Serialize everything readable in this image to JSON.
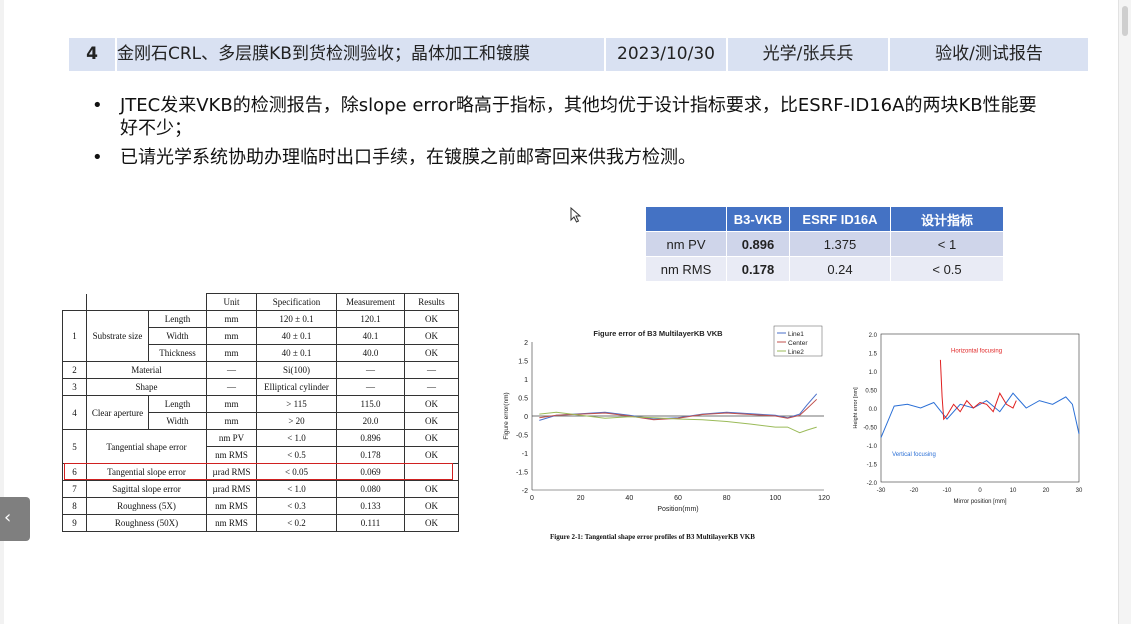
{
  "header": {
    "index": "4",
    "title": "金刚石CRL、多层膜KB到货检测验收；晶体加工和镀膜",
    "date": "2023/10/30",
    "owner": "光学/张兵兵",
    "type": "验收/测试报告"
  },
  "bullets": [
    "JTEC发来VKB的检测报告，除slope error略高于指标，其他均优于设计指标要求，比ESRF-ID16A的两块KB性能要好不少；",
    "已请光学系统协助办理临时出口手续，在镀膜之前邮寄回来供我方检测。"
  ],
  "bullet_glyph": "•",
  "comparison": {
    "headers": [
      "",
      "B3-VKB",
      "ESRF ID16A",
      "设计指标"
    ],
    "rows": [
      [
        "nm PV",
        "0.896",
        "1.375",
        "< 1"
      ],
      [
        "nm RMS",
        "0.178",
        "0.24",
        "< 0.5"
      ]
    ]
  },
  "spec_table": {
    "headers": [
      "Unit",
      "Specification",
      "Measurement",
      "Results"
    ],
    "rows": [
      {
        "no": "1",
        "item": "Substrate size",
        "sub": "Length",
        "unit": "mm",
        "spec": "120 ± 0.1",
        "meas": "120.1",
        "res": "OK"
      },
      {
        "no": "",
        "item": "",
        "sub": "Width",
        "unit": "mm",
        "spec": "40 ± 0.1",
        "meas": "40.1",
        "res": "OK"
      },
      {
        "no": "",
        "item": "",
        "sub": "Thickness",
        "unit": "mm",
        "spec": "40 ± 0.1",
        "meas": "40.0",
        "res": "OK"
      },
      {
        "no": "2",
        "item": "Material",
        "sub": "",
        "unit": "—",
        "spec": "Si(100)",
        "meas": "—",
        "res": "—"
      },
      {
        "no": "3",
        "item": "Shape",
        "sub": "",
        "unit": "—",
        "spec": "Elliptical cylinder",
        "meas": "—",
        "res": "—"
      },
      {
        "no": "4",
        "item": "Clear aperture",
        "sub": "Length",
        "unit": "mm",
        "spec": "> 115",
        "meas": "115.0",
        "res": "OK"
      },
      {
        "no": "",
        "item": "",
        "sub": "Width",
        "unit": "mm",
        "spec": "> 20",
        "meas": "20.0",
        "res": "OK"
      },
      {
        "no": "5",
        "item": "Tangential shape error",
        "sub": "",
        "unit": "nm PV",
        "spec": "< 1.0",
        "meas": "0.896",
        "res": "OK"
      },
      {
        "no": "",
        "item": "",
        "sub": "",
        "unit": "nm RMS",
        "spec": "< 0.5",
        "meas": "0.178",
        "res": "OK"
      },
      {
        "no": "6",
        "item": "Tangential slope error",
        "sub": "",
        "unit": "µrad RMS",
        "spec": "< 0.05",
        "meas": "0.069",
        "res": ""
      },
      {
        "no": "7",
        "item": "Sagittal slope error",
        "sub": "",
        "unit": "µrad RMS",
        "spec": "< 1.0",
        "meas": "0.080",
        "res": "OK"
      },
      {
        "no": "8",
        "item": "Roughness (5X)",
        "sub": "",
        "unit": "nm RMS",
        "spec": "< 0.3",
        "meas": "0.133",
        "res": "OK"
      },
      {
        "no": "9",
        "item": "Roughness (50X)",
        "sub": "",
        "unit": "nm RMS",
        "spec": "< 0.2",
        "meas": "0.111",
        "res": "OK"
      }
    ]
  },
  "chart_data": [
    {
      "type": "line",
      "title": "Figure error of B3 MultilayerKB VKB",
      "xlabel": "Position(mm)",
      "ylabel": "Figure error(nm)",
      "xlim": [
        0,
        120
      ],
      "ylim": [
        -2,
        2
      ],
      "xticks": [
        "0",
        "20",
        "40",
        "60",
        "80",
        "100",
        "120"
      ],
      "yticks": [
        "2",
        "1.5",
        "1",
        "0.5",
        "0",
        "-0.5",
        "-1",
        "-1.5",
        "-2"
      ],
      "legend_position": "top-right",
      "series": [
        {
          "name": "Line1",
          "color": "#4a6fc9",
          "x": [
            3,
            10,
            20,
            30,
            40,
            50,
            60,
            70,
            80,
            90,
            100,
            105,
            110,
            113,
            117
          ],
          "y": [
            -0.12,
            0.02,
            0.06,
            0.1,
            0.02,
            -0.08,
            -0.05,
            0.05,
            0.1,
            0.06,
            0.02,
            -0.05,
            0.05,
            0.3,
            0.6
          ]
        },
        {
          "name": "Center",
          "color": "#c0504d",
          "x": [
            3,
            10,
            20,
            30,
            40,
            50,
            60,
            70,
            80,
            90,
            100,
            105,
            110,
            113,
            117
          ],
          "y": [
            -0.05,
            0.02,
            0.05,
            0.08,
            0.0,
            -0.1,
            -0.06,
            0.04,
            0.08,
            0.04,
            0.0,
            -0.06,
            0.02,
            0.2,
            0.45
          ]
        },
        {
          "name": "Line2",
          "color": "#9bbb59",
          "x": [
            3,
            10,
            20,
            30,
            40,
            50,
            60,
            70,
            80,
            90,
            100,
            105,
            110,
            113,
            117
          ],
          "y": [
            0.05,
            0.1,
            0.02,
            -0.06,
            -0.02,
            -0.05,
            -0.08,
            -0.1,
            -0.15,
            -0.22,
            -0.3,
            -0.3,
            -0.45,
            -0.38,
            -0.3
          ]
        }
      ]
    },
    {
      "type": "line",
      "title": "",
      "xlabel": "Mirror position [mm]",
      "ylabel": "Height error [nm]",
      "xlim": [
        -30,
        30
      ],
      "ylim": [
        -2,
        2
      ],
      "xticks": [
        "-30",
        "-20",
        "-10",
        "0",
        "10",
        "20",
        "30"
      ],
      "yticks": [
        "2.0",
        "1.5",
        "1.0",
        "0.50",
        "0.0",
        "-0.50",
        "-1.0",
        "-1.5",
        "-2.0"
      ],
      "annotations": [
        "Horizontal focusing",
        "Vertical focusing"
      ],
      "series": [
        {
          "name": "Vertical focusing",
          "color": "#2a6fd6",
          "x": [
            -30,
            -26,
            -22,
            -18,
            -14,
            -10,
            -6,
            -2,
            2,
            6,
            10,
            14,
            18,
            22,
            26,
            28,
            30
          ],
          "y": [
            -0.8,
            0.05,
            0.1,
            0.0,
            0.15,
            -0.3,
            0.1,
            0.0,
            0.2,
            -0.1,
            0.4,
            0.0,
            0.2,
            0.1,
            0.3,
            0.1,
            -0.7
          ]
        },
        {
          "name": "Horizontal focusing",
          "color": "#e02020",
          "x": [
            -12,
            -11.5,
            -11,
            -10,
            -8,
            -6,
            -4,
            -2,
            0,
            2,
            4,
            6,
            8,
            10,
            11
          ],
          "y": [
            1.3,
            0.3,
            -0.3,
            -0.2,
            0.1,
            -0.1,
            0.2,
            0.0,
            0.15,
            0.1,
            -0.1,
            0.4,
            0.1,
            0.0,
            0.2
          ]
        }
      ]
    }
  ],
  "figure_caption": "Figure 2-1: Tangential shape error profiles of B3 MultilayerKB VKB",
  "nav": {
    "prev_glyph": "‹"
  }
}
